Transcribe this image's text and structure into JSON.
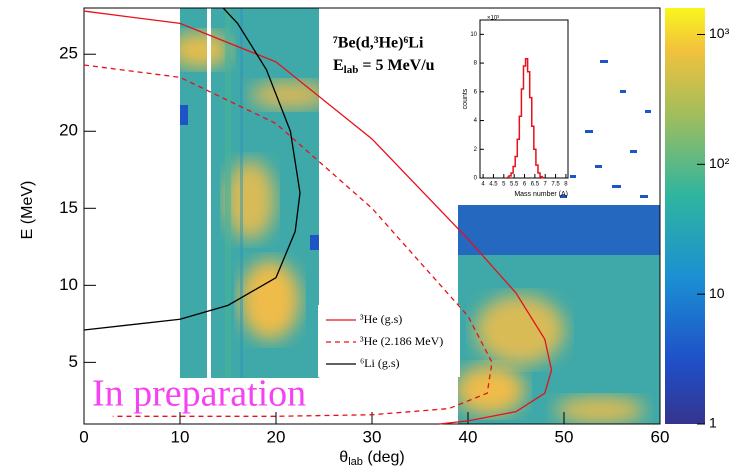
{
  "chart_data": [
    {
      "type": "line",
      "annotations": [
        "⁷Be(d,³He)⁶Li",
        "E",
        "lab",
        " = 5 MeV/u",
        "In preparation"
      ],
      "x_label": [
        "θ",
        "lab",
        " (deg)"
      ],
      "y_label": "E (MeV)",
      "xlim": [
        0,
        60
      ],
      "xticks": [
        0,
        10,
        20,
        30,
        40,
        50,
        60
      ],
      "ylim": [
        1,
        28
      ],
      "yticks": [
        5,
        10,
        15,
        20,
        25
      ],
      "series": [
        {
          "name": "³He (g.s)",
          "color": "#e8101a",
          "dash": false,
          "x": [
            0,
            10,
            20,
            30,
            40,
            45,
            48,
            48.7,
            48,
            45,
            40,
            37
          ],
          "values": [
            27.8,
            27,
            24.5,
            19.5,
            13,
            9.5,
            6.5,
            4.5,
            3,
            1.8,
            1.2,
            1
          ]
        },
        {
          "name": "³He (2.186 MeV)",
          "color": "#e8101a",
          "dash": true,
          "x": [
            0,
            10,
            20,
            30,
            35,
            40,
            42.5,
            42,
            38,
            30,
            20,
            3
          ],
          "values": [
            24.3,
            23.5,
            20.5,
            15,
            11.5,
            8,
            5,
            3,
            2,
            1.6,
            1.5,
            1.5
          ]
        },
        {
          "name": "⁶Li (g.s)",
          "color": "#000000",
          "dash": false,
          "x": [
            0,
            10,
            15,
            20,
            22,
            22.5,
            21.5,
            19,
            16,
            14.5
          ],
          "values": [
            7.1,
            7.8,
            8.7,
            10.5,
            13.5,
            16,
            20,
            24,
            27,
            28
          ]
        }
      ],
      "colorbar": {
        "log": true,
        "lim": [
          1,
          1600
        ],
        "ticks": [
          1,
          10,
          {
            "value": 100,
            "label": "10²"
          },
          {
            "value": 1000,
            "label": "10³"
          }
        ]
      }
    },
    {
      "type": "step",
      "x_label": "Mass number (A)",
      "y_label": "counts",
      "y_exponent": "×10³",
      "xlim": [
        3.85,
        8.1
      ],
      "xticks": [
        4,
        4.5,
        5,
        5.5,
        6,
        6.5,
        7,
        7.5,
        8
      ],
      "ylim": [
        0,
        11
      ],
      "yticks": [
        0,
        2,
        4,
        6,
        8,
        10
      ],
      "color": "#e8101a",
      "x": [
        5.2,
        5.3,
        5.4,
        5.5,
        5.6,
        5.7,
        5.8,
        5.9,
        6.0,
        6.1,
        6.2,
        6.3,
        6.4,
        6.5,
        6.6,
        6.7,
        6.8,
        6.9
      ],
      "values": [
        0.05,
        0.15,
        0.35,
        0.8,
        1.5,
        2.7,
        4.3,
        6.2,
        7.8,
        8.3,
        7.4,
        5.6,
        3.6,
        2.0,
        0.9,
        0.35,
        0.1,
        0.03
      ]
    }
  ]
}
